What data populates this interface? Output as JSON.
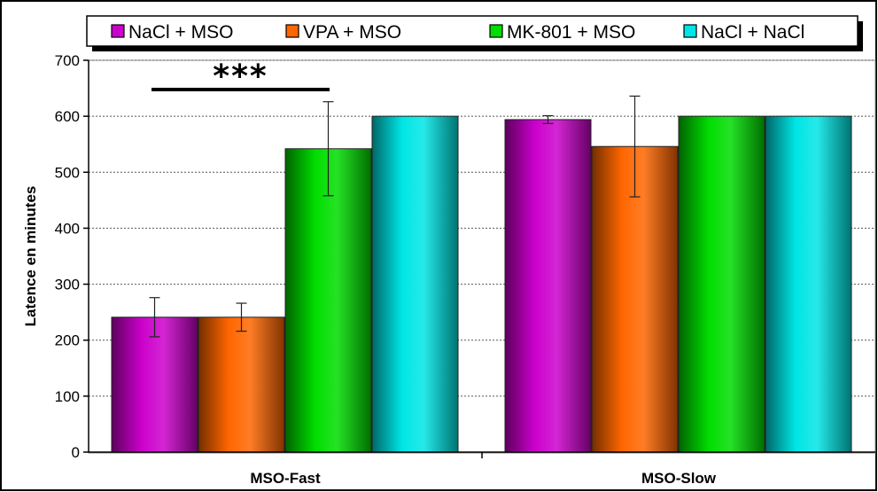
{
  "chart_data": {
    "type": "bar",
    "categories": [
      "MSO-Fast",
      "MSO-Slow"
    ],
    "series": [
      {
        "name": "NaCl + MSO",
        "color": "#cc00cc",
        "values": [
          241,
          594
        ],
        "errors": [
          35,
          7
        ]
      },
      {
        "name": "VPA + MSO",
        "color": "#ff6600",
        "values": [
          241,
          546
        ],
        "errors": [
          25,
          90
        ]
      },
      {
        "name": "MK-801 + MSO",
        "color": "#00dd00",
        "values": [
          542,
          600
        ],
        "errors": [
          84,
          0
        ]
      },
      {
        "name": "NaCl + NaCl",
        "color": "#00e5e5",
        "values": [
          600,
          600
        ],
        "errors": [
          0,
          0
        ]
      }
    ],
    "xlabel": "",
    "ylabel": "Latence en minutes",
    "ylim": [
      0,
      700
    ],
    "yticks": [
      0,
      100,
      200,
      300,
      400,
      500,
      600,
      700
    ],
    "grid": true,
    "legend": "top",
    "annotation": {
      "text": "***",
      "category": "MSO-Fast"
    }
  }
}
